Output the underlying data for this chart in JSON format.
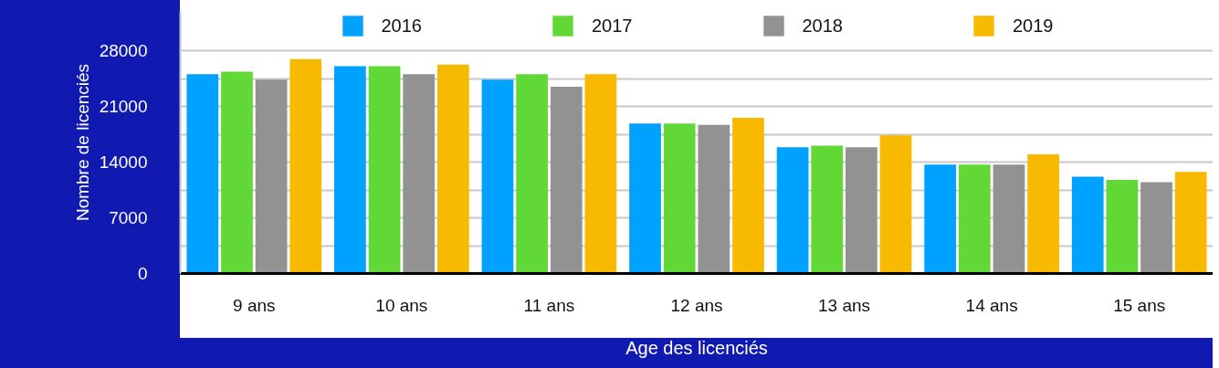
{
  "chart_data": {
    "type": "bar",
    "xlabel": "Age des licenciés",
    "ylabel": "Nombre de licenciés",
    "categories": [
      "9 ans",
      "10 ans",
      "11 ans",
      "12 ans",
      "13 ans",
      "14 ans",
      "15 ans"
    ],
    "series": [
      {
        "name": "2016",
        "color": "#00a2ff",
        "values": [
          25100,
          26100,
          24400,
          18900,
          15900,
          13700,
          12200
        ]
      },
      {
        "name": "2017",
        "color": "#61d836",
        "values": [
          25400,
          26100,
          25100,
          18900,
          16100,
          13700,
          11800
        ]
      },
      {
        "name": "2018",
        "color": "#929292",
        "values": [
          24400,
          25100,
          23500,
          18700,
          15900,
          13700,
          11500
        ]
      },
      {
        "name": "2019",
        "color": "#f8ba00",
        "values": [
          27000,
          26300,
          25100,
          19600,
          17400,
          15000,
          12800
        ]
      }
    ],
    "ylim": [
      0,
      33000
    ],
    "yticks": [
      0,
      {
        "value": 3500,
        "label": null
      },
      7000,
      {
        "value": 10500,
        "label": null
      },
      14000,
      {
        "value": 17500,
        "label": null
      },
      21000,
      {
        "value": 24500,
        "label": null
      },
      28000
    ],
    "grid": "y",
    "legend": "top"
  }
}
